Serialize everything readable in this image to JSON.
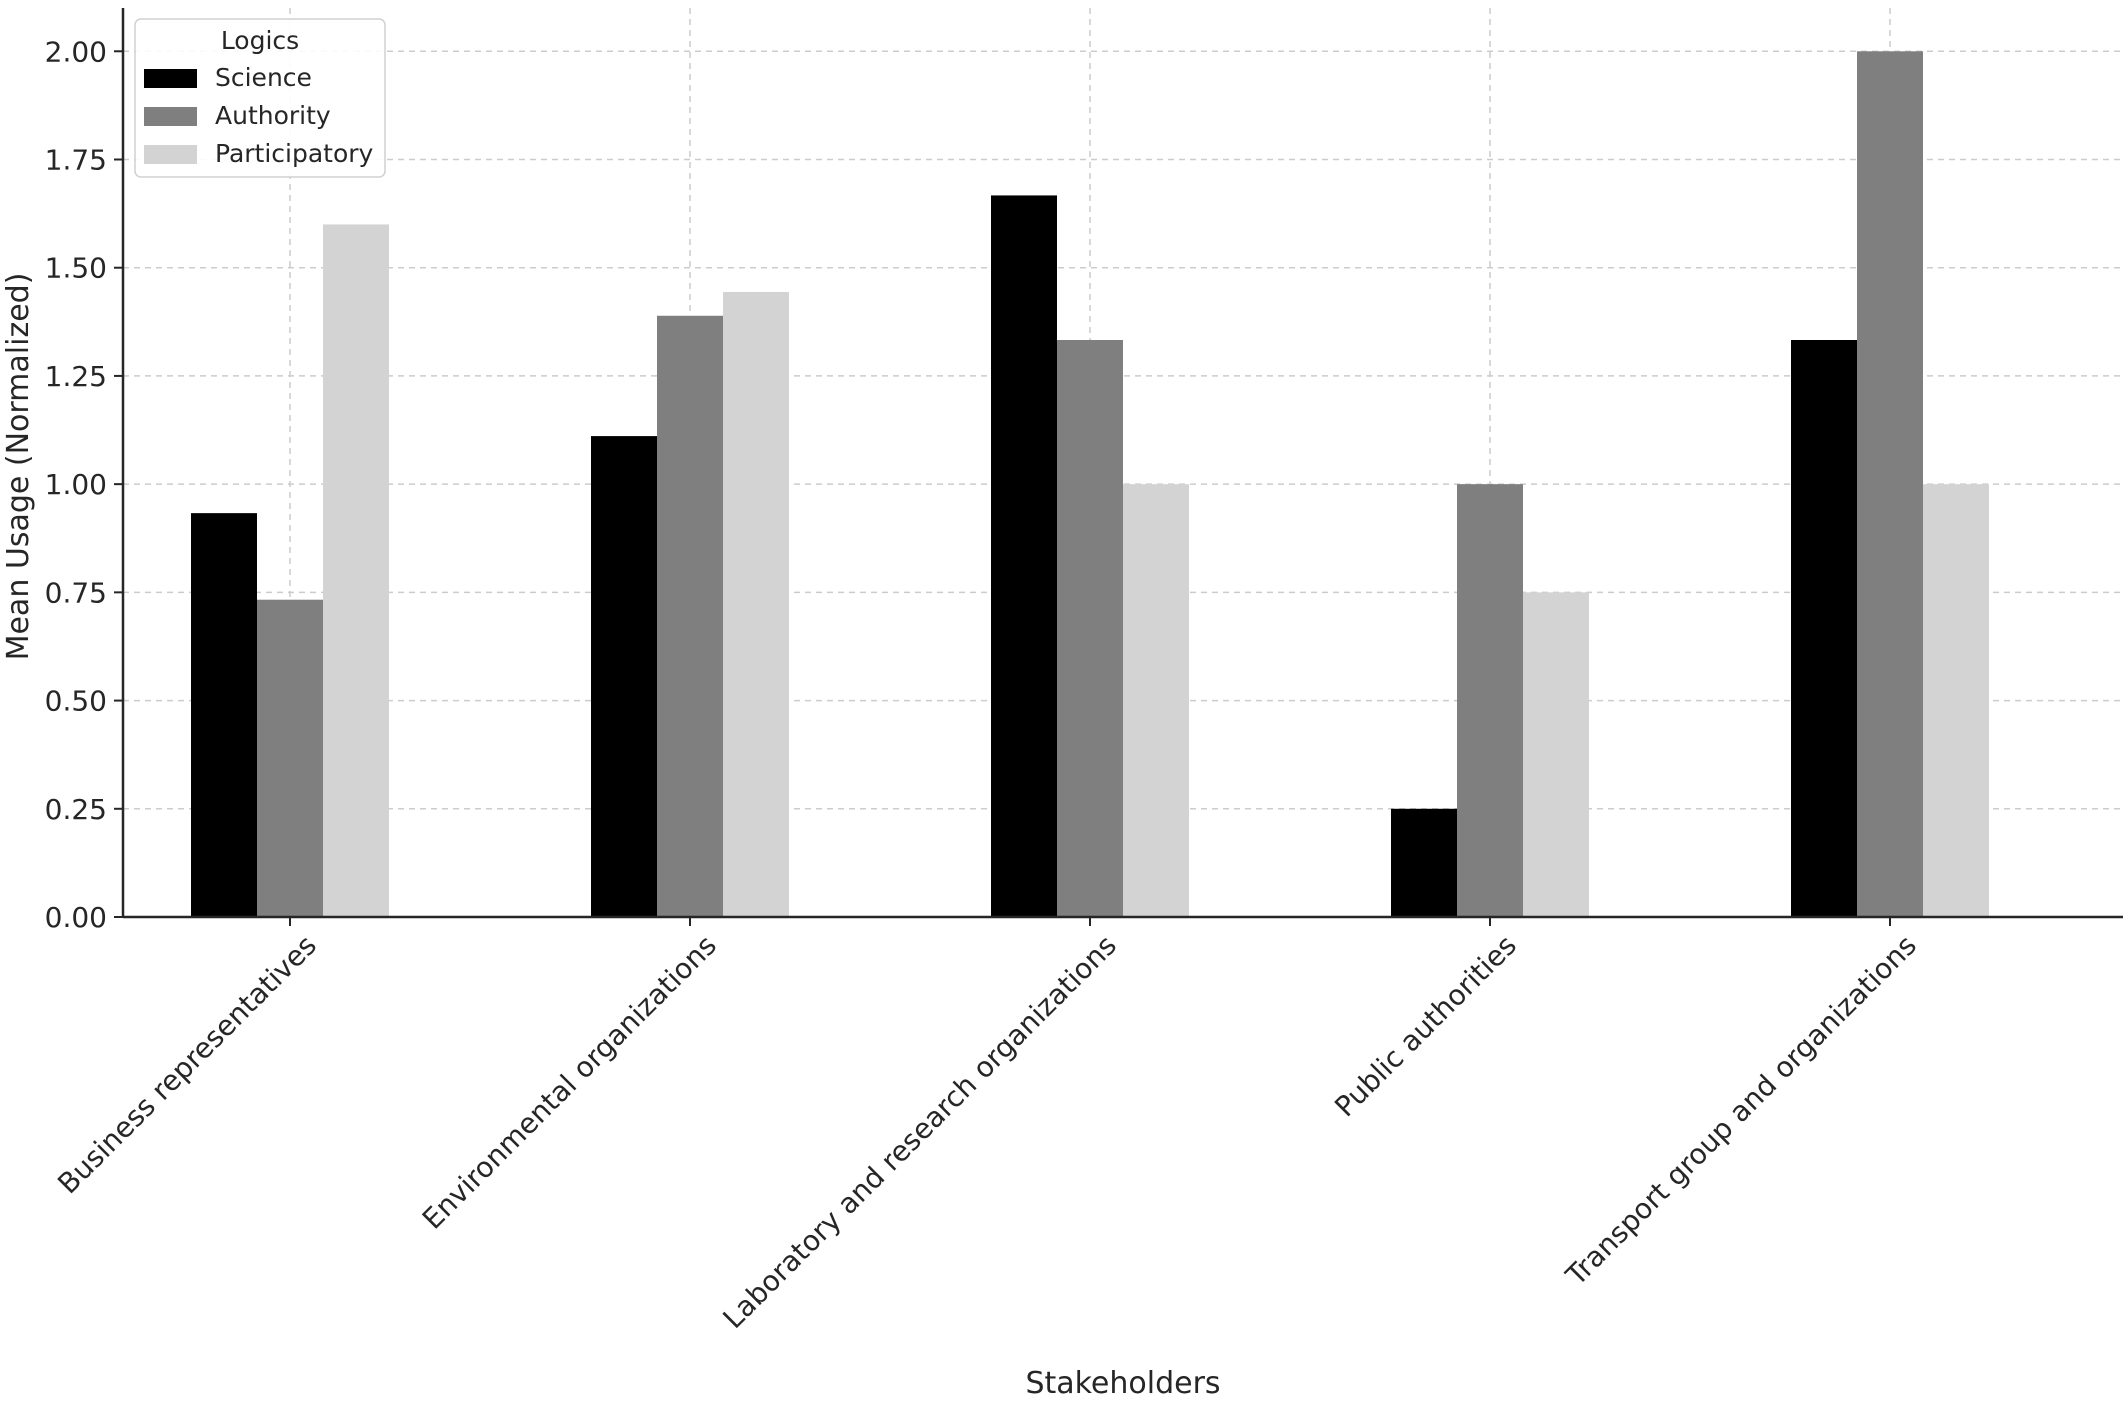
{
  "chart_data": {
    "type": "bar",
    "xlabel": "Stakeholders",
    "ylabel": "Mean Usage (Normalized)",
    "ylim": [
      0,
      2.1
    ],
    "yticks": [
      "0.00",
      "0.25",
      "0.50",
      "0.75",
      "1.00",
      "1.25",
      "1.50",
      "1.75",
      "2.00"
    ],
    "grid": true,
    "legend": {
      "title": "Logics",
      "placement": "top-left"
    },
    "categories": [
      "Business representatives",
      "Environmental organizations",
      "Laboratory and research organizations",
      "Public authorities",
      "Transport group and organizations"
    ],
    "series": [
      {
        "name": "Science",
        "color": "#000000",
        "values": [
          0.933,
          1.111,
          1.667,
          0.25,
          1.333
        ]
      },
      {
        "name": "Authority",
        "color": "#7f7f7f",
        "values": [
          0.733,
          1.389,
          1.333,
          1.0,
          2.0
        ]
      },
      {
        "name": "Participatory",
        "color": "#d3d3d3",
        "values": [
          1.6,
          1.444,
          1.0,
          0.75,
          1.0
        ]
      }
    ]
  }
}
